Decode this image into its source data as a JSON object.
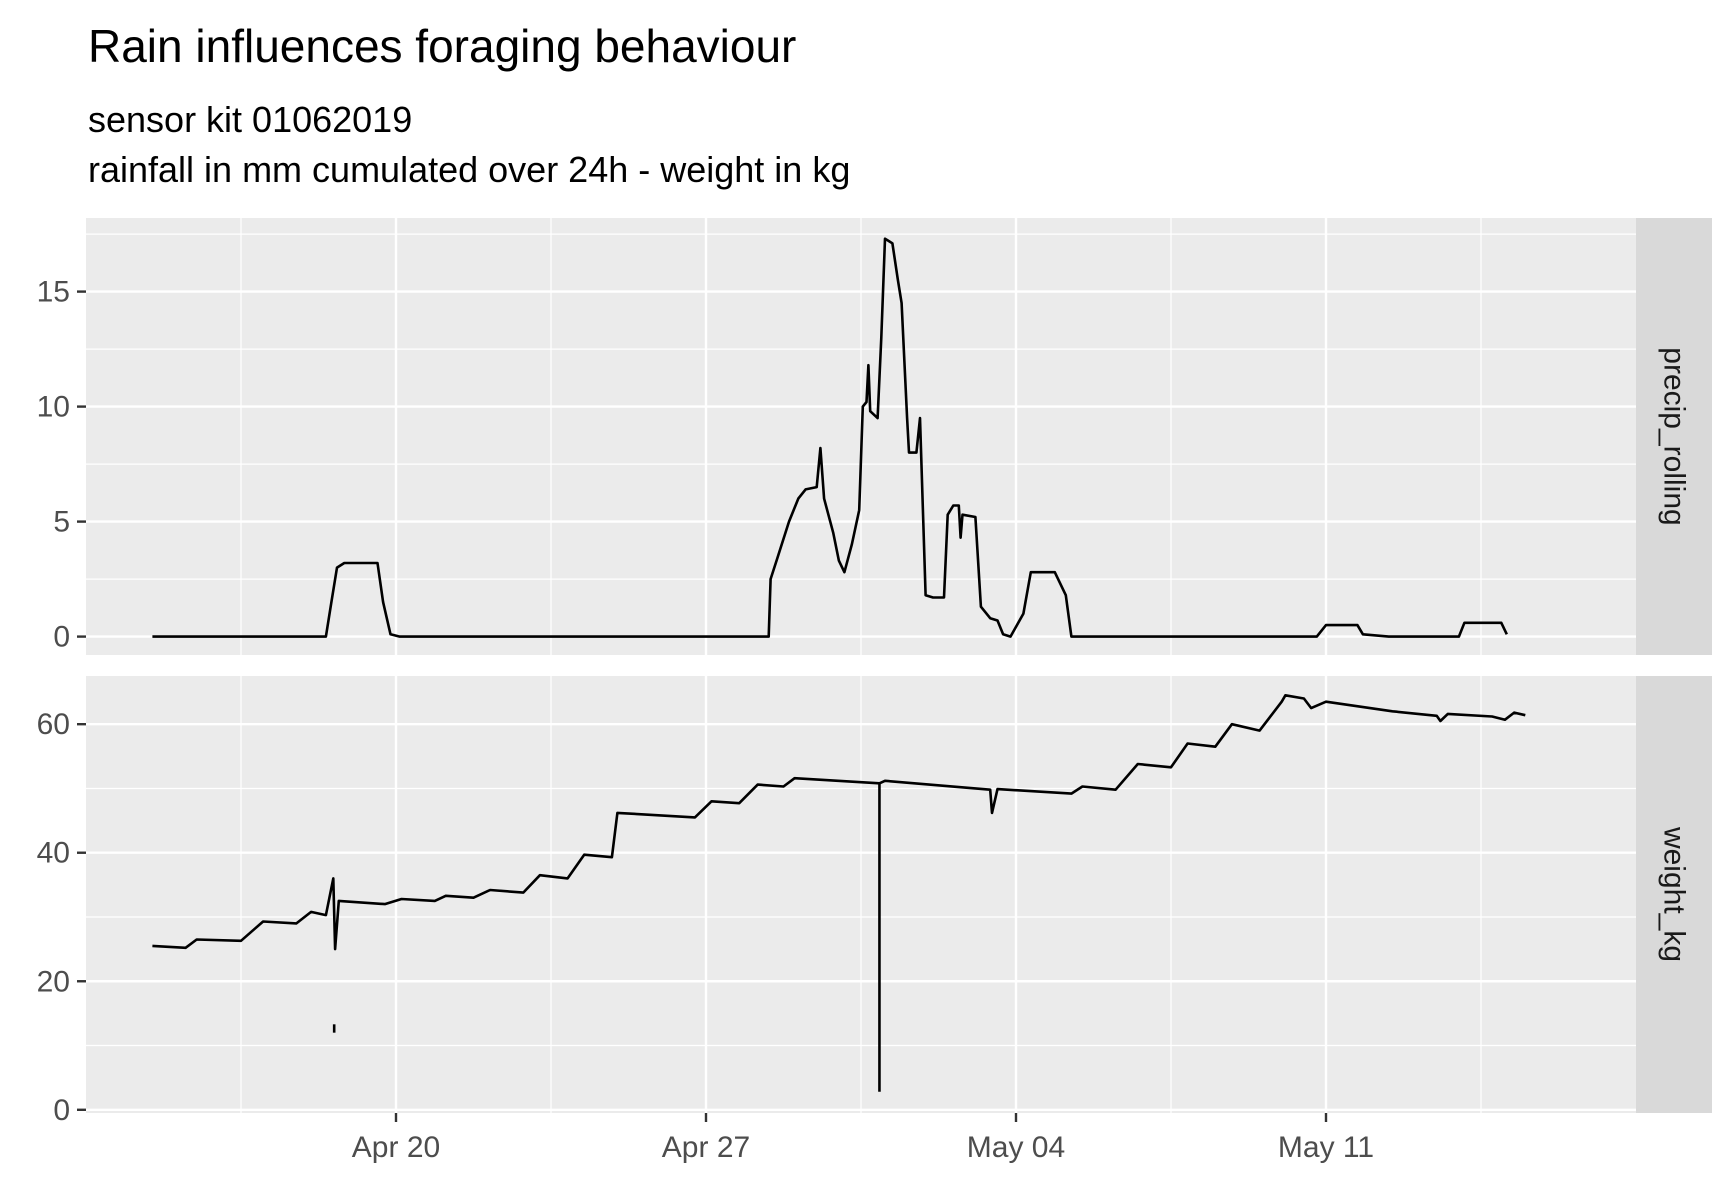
{
  "chart_data": {
    "type": "line",
    "title": "Rain influences foraging behaviour",
    "subtitle_lines": [
      "sensor kit 01062019",
      "rainfall in mm cumulated over 24h - weight in kg"
    ],
    "x_axis": {
      "type": "date",
      "range": [
        "2019-04-13",
        "2019-05-18"
      ],
      "ticks": [
        {
          "date": "2019-04-20",
          "label": "Apr 20"
        },
        {
          "date": "2019-04-27",
          "label": "Apr 27"
        },
        {
          "date": "2019-05-04",
          "label": "May 04"
        },
        {
          "date": "2019-05-11",
          "label": "May 11"
        }
      ]
    },
    "panels": [
      {
        "strip_label": "precip_rolling",
        "ylim": [
          -0.8,
          18.2
        ],
        "y_ticks": [
          0,
          5,
          10,
          15
        ],
        "series": [
          {
            "color": "#000000",
            "points": [
              [
                "2019-04-14T12:00",
                0
              ],
              [
                "2019-04-18T10:00",
                0
              ],
              [
                "2019-04-18T13:00",
                1.5
              ],
              [
                "2019-04-18T16:00",
                3.0
              ],
              [
                "2019-04-18T20:00",
                3.2
              ],
              [
                "2019-04-19T14:00",
                3.2
              ],
              [
                "2019-04-19T17:00",
                1.5
              ],
              [
                "2019-04-19T21:00",
                0.1
              ],
              [
                "2019-04-20T02:00",
                0
              ],
              [
                "2019-04-28T10:00",
                0
              ],
              [
                "2019-04-28T11:00",
                2.5
              ],
              [
                "2019-04-28T15:00",
                3.5
              ],
              [
                "2019-04-28T21:00",
                5.0
              ],
              [
                "2019-04-29T02:00",
                6.0
              ],
              [
                "2019-04-29T06:00",
                6.4
              ],
              [
                "2019-04-29T12:00",
                6.5
              ],
              [
                "2019-04-29T14:00",
                8.2
              ],
              [
                "2019-04-29T16:00",
                6.0
              ],
              [
                "2019-04-29T21:00",
                4.5
              ],
              [
                "2019-04-30T00:00",
                3.3
              ],
              [
                "2019-04-30T03:00",
                2.8
              ],
              [
                "2019-04-30T07:00",
                4.0
              ],
              [
                "2019-04-30T11:00",
                5.5
              ],
              [
                "2019-04-30T13:00",
                10.0
              ],
              [
                "2019-04-30T15:00",
                10.2
              ],
              [
                "2019-04-30T16:00",
                11.8
              ],
              [
                "2019-04-30T17:00",
                9.8
              ],
              [
                "2019-04-30T21:00",
                9.5
              ],
              [
                "2019-04-30T23:00",
                13.0
              ],
              [
                "2019-05-01T01:00",
                17.3
              ],
              [
                "2019-05-01T05:00",
                17.1
              ],
              [
                "2019-05-01T08:00",
                15.5
              ],
              [
                "2019-05-01T10:00",
                14.5
              ],
              [
                "2019-05-01T13:00",
                9.5
              ],
              [
                "2019-05-01T14:00",
                8.0
              ],
              [
                "2019-05-01T18:00",
                8.0
              ],
              [
                "2019-05-01T20:00",
                9.5
              ],
              [
                "2019-05-01T23:00",
                1.8
              ],
              [
                "2019-05-02T03:00",
                1.7
              ],
              [
                "2019-05-02T09:00",
                1.7
              ],
              [
                "2019-05-02T11:00",
                5.3
              ],
              [
                "2019-05-02T14:00",
                5.7
              ],
              [
                "2019-05-02T17:00",
                5.7
              ],
              [
                "2019-05-02T18:00",
                4.3
              ],
              [
                "2019-05-02T19:00",
                5.3
              ],
              [
                "2019-05-03T02:00",
                5.2
              ],
              [
                "2019-05-03T05:00",
                1.3
              ],
              [
                "2019-05-03T10:00",
                0.8
              ],
              [
                "2019-05-03T14:00",
                0.7
              ],
              [
                "2019-05-03T17:00",
                0.1
              ],
              [
                "2019-05-03T21:00",
                0
              ],
              [
                "2019-05-04T04:00",
                1.0
              ],
              [
                "2019-05-04T08:00",
                2.8
              ],
              [
                "2019-05-04T21:00",
                2.8
              ],
              [
                "2019-05-05T03:00",
                1.8
              ],
              [
                "2019-05-05T06:00",
                0
              ],
              [
                "2019-05-10T19:00",
                0
              ],
              [
                "2019-05-11T00:00",
                0.5
              ],
              [
                "2019-05-11T17:00",
                0.5
              ],
              [
                "2019-05-11T20:00",
                0.1
              ],
              [
                "2019-05-12T10:00",
                0
              ],
              [
                "2019-05-14T00:00",
                0
              ],
              [
                "2019-05-14T03:00",
                0.6
              ],
              [
                "2019-05-14T23:00",
                0.6
              ],
              [
                "2019-05-15T02:00",
                0.1
              ]
            ]
          }
        ]
      },
      {
        "strip_label": "weight_kg",
        "ylim": [
          -0.5,
          67.5
        ],
        "y_ticks": [
          0,
          20,
          40,
          60
        ],
        "series": [
          {
            "color": "#000000",
            "points": [
              [
                "2019-04-14T12:00",
                25.5
              ],
              [
                "2019-04-15T06:00",
                25.2
              ],
              [
                "2019-04-15T12:00",
                26.5
              ],
              [
                "2019-04-16T12:00",
                26.3
              ],
              [
                "2019-04-17T00:00",
                29.3
              ],
              [
                "2019-04-17T18:00",
                29.0
              ],
              [
                "2019-04-18T02:00",
                30.8
              ],
              [
                "2019-04-18T10:00",
                30.3
              ],
              [
                "2019-04-18T14:00",
                36.0
              ],
              [
                "2019-04-18T15:00",
                25.0
              ],
              [
                "2019-04-18T17:00",
                32.5
              ],
              [
                "2019-04-19T18:00",
                32.0
              ],
              [
                "2019-04-20T03:00",
                32.8
              ],
              [
                "2019-04-20T21:00",
                32.5
              ],
              [
                "2019-04-21T03:00",
                33.3
              ],
              [
                "2019-04-21T18:00",
                33.0
              ],
              [
                "2019-04-22T03:00",
                34.2
              ],
              [
                "2019-04-22T21:00",
                33.8
              ],
              [
                "2019-04-23T06:00",
                36.5
              ],
              [
                "2019-04-23T21:00",
                36.0
              ],
              [
                "2019-04-24T06:00",
                39.7
              ],
              [
                "2019-04-24T21:00",
                39.3
              ],
              [
                "2019-04-25T00:00",
                46.2
              ],
              [
                "2019-04-26T18:00",
                45.5
              ],
              [
                "2019-04-27T03:00",
                48.0
              ],
              [
                "2019-04-27T18:00",
                47.7
              ],
              [
                "2019-04-28T04:00",
                50.6
              ],
              [
                "2019-04-28T18:00",
                50.3
              ],
              [
                "2019-04-29T00:00",
                51.6
              ],
              [
                "2019-04-30T22:00",
                50.8
              ],
              [
                "2019-05-01T01:00",
                51.2
              ],
              [
                "2019-05-03T10:00",
                49.8
              ],
              [
                "2019-05-03T11:00",
                46.2
              ],
              [
                "2019-05-03T14:00",
                49.9
              ],
              [
                "2019-05-05T06:00",
                49.2
              ],
              [
                "2019-05-05T12:00",
                50.3
              ],
              [
                "2019-05-06T06:00",
                49.8
              ],
              [
                "2019-05-06T18:00",
                53.8
              ],
              [
                "2019-05-07T12:00",
                53.3
              ],
              [
                "2019-05-07T21:00",
                57.0
              ],
              [
                "2019-05-08T12:00",
                56.5
              ],
              [
                "2019-05-08T21:00",
                60.0
              ],
              [
                "2019-05-09T12:00",
                59.0
              ],
              [
                "2019-05-10T00:00",
                63.5
              ],
              [
                "2019-05-10T02:00",
                64.5
              ],
              [
                "2019-05-10T12:00",
                64.0
              ],
              [
                "2019-05-10T16:00",
                62.5
              ],
              [
                "2019-05-11T00:00",
                63.5
              ],
              [
                "2019-05-12T12:00",
                62.0
              ],
              [
                "2019-05-13T12:00",
                61.3
              ],
              [
                "2019-05-13T14:00",
                60.5
              ],
              [
                "2019-05-13T18:00",
                61.6
              ],
              [
                "2019-05-14T18:00",
                61.2
              ],
              [
                "2019-05-15T01:00",
                60.7
              ],
              [
                "2019-05-15T06:00",
                61.8
              ],
              [
                "2019-05-15T12:00",
                61.4
              ]
            ],
            "spikes": [
              {
                "date": "2019-04-30T22:00",
                "from": 51.0,
                "to": 2.8
              },
              {
                "date": "2019-04-18T14:30",
                "from": 12.0,
                "to": 13.3
              }
            ]
          }
        ]
      }
    ]
  }
}
